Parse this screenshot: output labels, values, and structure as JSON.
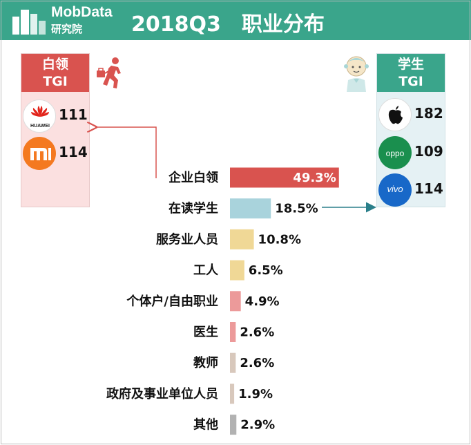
{
  "header": {
    "logo_en": "MobData",
    "logo_cn": "研究院",
    "title": "2018Q3　职业分布"
  },
  "left_panel": {
    "title_line1": "白领",
    "title_line2": "TGI",
    "brands": [
      {
        "icon": "huawei-icon",
        "logo_text": "HUAWEI",
        "value": "111"
      },
      {
        "icon": "xiaomi-icon",
        "logo_text": "mi",
        "value": "114"
      }
    ]
  },
  "right_panel": {
    "title_line1": "学生",
    "title_line2": "TGI",
    "brands": [
      {
        "icon": "apple-icon",
        "logo_text": "",
        "value": "182"
      },
      {
        "icon": "oppo-icon",
        "logo_text": "oppo",
        "value": "109"
      },
      {
        "icon": "vivo-icon",
        "logo_text": "vivo",
        "value": "114"
      }
    ]
  },
  "colors": {
    "header_bg": "#3aa58b",
    "white_collar": "#d9534f",
    "student": "#a9d3dc",
    "service": "#f0d896",
    "worker": "#f0d896",
    "self_employed": "#ec9a9a",
    "doctor": "#ec9a9a",
    "teacher": "#d8c8bc",
    "government": "#d8c8bc",
    "other": "#b2b2b2",
    "arrow_left": "#d9534f",
    "arrow_right": "#2a7f8a"
  },
  "chart_data": {
    "type": "bar",
    "orientation": "horizontal",
    "title": "2018Q3　职业分布",
    "categories": [
      "企业白领",
      "在读学生",
      "服务业人员",
      "工人",
      "个体户/自由职业",
      "医生",
      "教师",
      "政府及事业单位人员",
      "其他"
    ],
    "values": [
      49.3,
      18.5,
      10.8,
      6.5,
      4.9,
      2.6,
      2.6,
      1.9,
      2.9
    ],
    "labels": [
      "49.3%",
      "18.5%",
      "10.8%",
      "6.5%",
      "4.9%",
      "2.6%",
      "2.6%",
      "1.9%",
      "2.9%"
    ],
    "unit": "%",
    "bar_colors": [
      "#d9534f",
      "#a9d3dc",
      "#f0d896",
      "#f0d896",
      "#ec9a9a",
      "#ec9a9a",
      "#d8c8bc",
      "#d8c8bc",
      "#b2b2b2"
    ],
    "xlim": [
      0,
      50
    ],
    "grid": false,
    "legend": "none"
  }
}
